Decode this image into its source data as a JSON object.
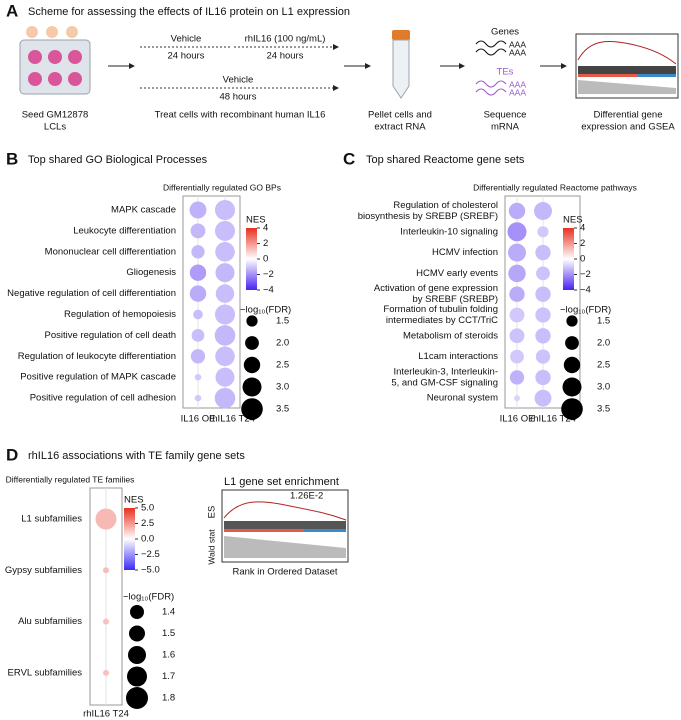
{
  "scheme": {
    "panel_label": "A",
    "title": "Scheme for assessing the effects of IL16 protein on L1 expression",
    "vehicle_top": "Vehicle",
    "hours_top": "24 hours",
    "treatment": "rhIL16 (100 ng/mL)",
    "hours_treatment": "24 hours",
    "vehicle_bottom": "Vehicle",
    "hours_bottom": "48 hours",
    "genes": "Genes",
    "tes": "TEs",
    "polya": "AAA",
    "steps": [
      [
        "Seed GM12878",
        "LCLs"
      ],
      [
        "Treat cells with recombinant human IL16"
      ],
      [
        "Pellet cells and",
        "extract RNA"
      ],
      [
        "Sequence",
        "mRNA"
      ],
      [
        "Differential gene",
        "expression and GSEA"
      ]
    ]
  },
  "chart_data": [
    {
      "type": "dotplot",
      "panel_label": "B",
      "title": "Top shared GO Biological Processes",
      "subtitle": "Differentially regulated GO BPs",
      "categories": [
        [
          "MAPK cascade"
        ],
        [
          "Leukocyte differentiation"
        ],
        [
          "Mononuclear cell differentiation"
        ],
        [
          "Gliogenesis"
        ],
        [
          "Negative regulation of cell differentiation"
        ],
        [
          "Regulation of hemopoiesis"
        ],
        [
          "Positive regulation of cell death"
        ],
        [
          "Regulation of leukocyte differentiation"
        ],
        [
          "Positive regulation of MAPK cascade"
        ],
        [
          "Positive regulation of cell adhesion"
        ]
      ],
      "series": [
        {
          "name": "IL16 OE",
          "nes": [
            -1.4,
            -1.3,
            -1.3,
            -1.8,
            -1.5,
            -1.2,
            -1.2,
            -1.3,
            -1.0,
            -1.0
          ],
          "size": [
            2.6,
            2.2,
            1.9,
            2.5,
            2.5,
            1.2,
            1.8,
            2.1,
            0.6,
            0.6
          ]
        },
        {
          "name": "rhIL16 T24",
          "nes": [
            -1.2,
            -1.2,
            -1.2,
            -1.3,
            -1.2,
            -1.2,
            -1.3,
            -1.2,
            -1.2,
            -1.3
          ],
          "size": [
            3.2,
            3.2,
            3.1,
            3.0,
            2.9,
            3.2,
            3.3,
            3.1,
            3.0,
            3.3
          ]
        }
      ],
      "nes_title": "NES",
      "nes_lim": [
        -4,
        4
      ],
      "nes_ticks": [
        4,
        2,
        0,
        {
          "value": -2,
          "label": "−2"
        },
        {
          "value": -4,
          "label": "−4"
        }
      ],
      "size_title": "−log₁₀(FDR)",
      "size_ticks": [
        1.5,
        {
          "value": 2,
          "label": "2.0"
        },
        2.5,
        {
          "value": 3,
          "label": "3.0"
        },
        3.5
      ],
      "color_low": "#4a22f0",
      "color_mid": "#ffffff",
      "color_high": "#e8301f"
    },
    {
      "type": "dotplot",
      "panel_label": "C",
      "title": "Top shared Reactome gene sets",
      "subtitle": "Differentially regulated Reactome pathways",
      "categories": [
        [
          "Regulation of cholesterol",
          "biosynthesis by SREBP (SREBF)"
        ],
        [
          "Interleukin-10 signaling"
        ],
        [
          "HCMV infection"
        ],
        [
          "HCMV early events"
        ],
        [
          "Activation of gene expression",
          "by SREBF (SREBP)"
        ],
        [
          "Formation of tubulin folding",
          "intermediates by CCT/TriC"
        ],
        [
          "Metabolism of steroids"
        ],
        [
          "L1cam interactions"
        ],
        [
          "Interleukin-3, Interleukin-",
          "5, and GM-CSF signaling"
        ],
        [
          "Neuronal system"
        ]
      ],
      "series": [
        {
          "name": "IL16 OE",
          "nes": [
            -1.5,
            -2.0,
            -1.5,
            -1.6,
            -1.5,
            -1.0,
            -1.1,
            -1.0,
            -1.4,
            -0.8
          ],
          "size": [
            2.5,
            3.0,
            2.8,
            2.7,
            2.3,
            2.2,
            2.2,
            2.0,
            2.1,
            0.5
          ]
        },
        {
          "name": "rhIL16 T24",
          "nes": [
            -1.3,
            -1.0,
            -1.2,
            -1.1,
            -1.2,
            -1.1,
            -1.2,
            -1.1,
            -1.2,
            -1.2
          ],
          "size": [
            2.8,
            1.5,
            2.3,
            2.0,
            2.3,
            2.3,
            2.3,
            2.1,
            2.3,
            2.6
          ]
        }
      ],
      "nes_title": "NES",
      "nes_lim": [
        -4,
        4
      ],
      "nes_ticks": [
        4,
        2,
        0,
        {
          "value": -2,
          "label": "−2"
        },
        {
          "value": -4,
          "label": "−4"
        }
      ],
      "size_title": "−log₁₀(FDR)",
      "size_ticks": [
        1.5,
        {
          "value": 2,
          "label": "2.0"
        },
        2.5,
        {
          "value": 3,
          "label": "3.0"
        },
        3.5
      ],
      "color_low": "#4a22f0",
      "color_mid": "#ffffff",
      "color_high": "#e8301f"
    },
    {
      "type": "dotplot",
      "panel_label": "D",
      "title": "rhIL16 associations with TE family gene sets",
      "subtitle": "Differentially regulated TE families",
      "categories": [
        [
          "L1 subfamilies"
        ],
        [
          "Gypsy subfamilies"
        ],
        [
          "Alu subfamilies"
        ],
        [
          "ERVL subfamilies"
        ]
      ],
      "series": [
        {
          "name": "rhIL16 T24",
          "nes": [
            1.7,
            1.6,
            1.5,
            1.5
          ],
          "size": [
            1.75,
            1.0,
            1.0,
            1.0
          ]
        }
      ],
      "nes_title": "NES",
      "nes_lim": [
        -5,
        5
      ],
      "nes_ticks": [
        {
          "value": 5,
          "label": "5.0"
        },
        2.5,
        {
          "value": 0,
          "label": "0.0"
        },
        {
          "value": -2.5,
          "label": "−2.5"
        },
        {
          "value": -5,
          "label": "−5.0"
        }
      ],
      "size_title": "−log₁₀(FDR)",
      "size_ticks": [
        1.4,
        1.5,
        1.6,
        1.7,
        1.8
      ],
      "color_low": "#3a2af5",
      "color_mid": "#ffffff",
      "color_high": "#e8301f"
    }
  ],
  "gsea_inset": {
    "title": "L1 gene set enrichment",
    "annotation": "1.26E-2",
    "top_label": "ES",
    "bottom_label": "Wald stat",
    "x_label": "Rank in Ordered Dataset"
  }
}
